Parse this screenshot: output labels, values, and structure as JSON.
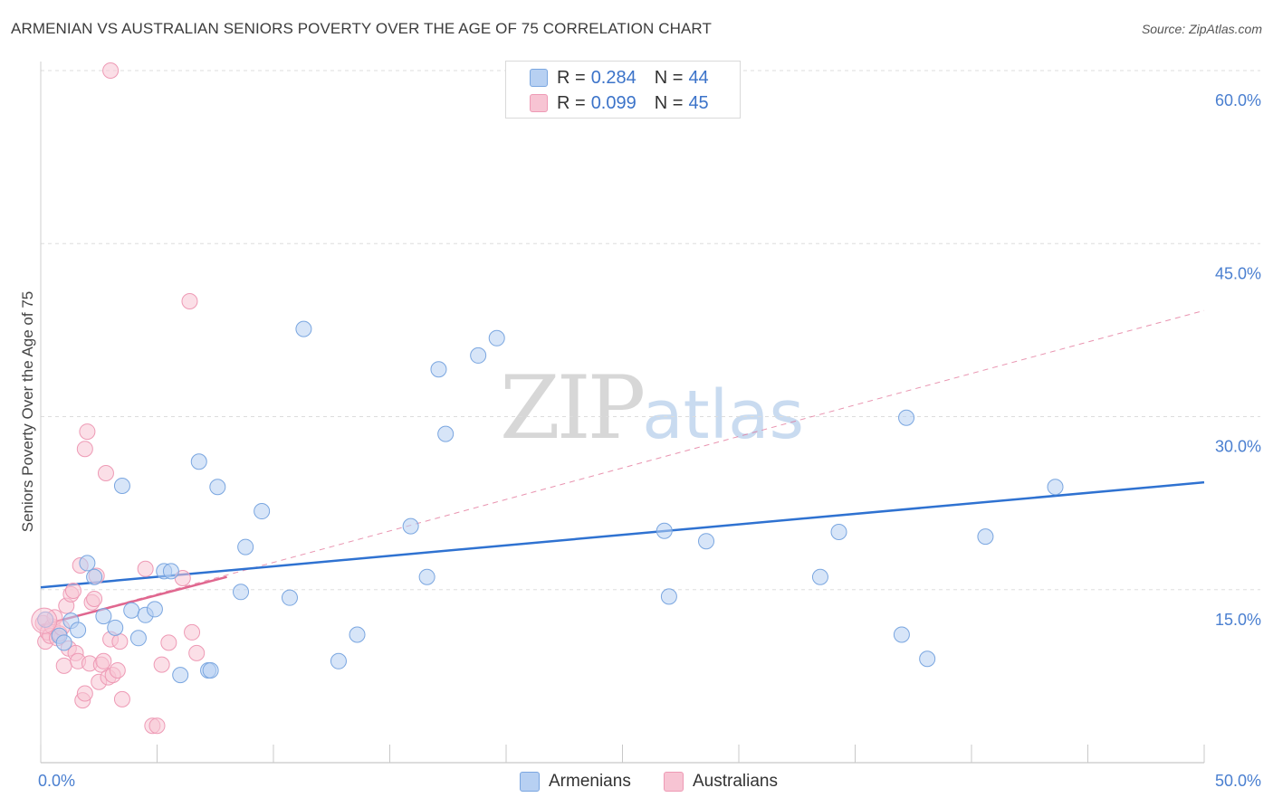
{
  "title": "ARMENIAN VS AUSTRALIAN SENIORS POVERTY OVER THE AGE OF 75 CORRELATION CHART",
  "source": "Source: ZipAtlas.com",
  "watermark": {
    "zip": "ZIP",
    "atlas": "atlas"
  },
  "legend": {
    "armenians": {
      "r_label": "R =",
      "r_value": "0.284",
      "n_label": "N =",
      "n_value": "44"
    },
    "australians": {
      "r_label": "R =",
      "r_value": "0.099",
      "n_label": "N =",
      "n_value": "45"
    }
  },
  "bottom_legend": {
    "armenians": "Armenians",
    "australians": "Australians"
  },
  "colors": {
    "armenians_fill": "#b7d0f2",
    "armenians_stroke": "#7aa6e0",
    "armenians_line": "#2f72d1",
    "australians_fill": "#f7c4d3",
    "australians_stroke": "#ee9ab5",
    "australians_line": "#e0678f",
    "tick": "#4a7fd0",
    "grid": "#dddddd"
  },
  "chart_data": {
    "type": "scatter",
    "title": "ARMENIAN VS AUSTRALIAN SENIORS POVERTY OVER THE AGE OF 75 CORRELATION CHART",
    "xlabel": "",
    "ylabel": "Seniors Poverty Over the Age of 75",
    "xlim": [
      0,
      50
    ],
    "ylim": [
      0,
      60
    ],
    "x_tick_labels": [
      "0.0%",
      "50.0%"
    ],
    "y_ticks": [
      15,
      30,
      45,
      60
    ],
    "y_tick_labels": [
      "15.0%",
      "30.0%",
      "45.0%",
      "60.0%"
    ],
    "series": [
      {
        "name": "Armenians",
        "R": 0.284,
        "N": 44,
        "trend": {
          "x": [
            0,
            50
          ],
          "y": [
            15.2,
            24.3
          ]
        },
        "points": [
          [
            0.2,
            12.4
          ],
          [
            0.8,
            11.0
          ],
          [
            1.0,
            10.4
          ],
          [
            1.3,
            12.3
          ],
          [
            1.6,
            11.5
          ],
          [
            2.0,
            17.3
          ],
          [
            2.3,
            16.1
          ],
          [
            2.7,
            12.7
          ],
          [
            3.2,
            11.7
          ],
          [
            3.5,
            24.0
          ],
          [
            3.9,
            13.2
          ],
          [
            4.2,
            10.8
          ],
          [
            4.5,
            12.8
          ],
          [
            4.9,
            13.3
          ],
          [
            5.3,
            16.6
          ],
          [
            5.6,
            16.6
          ],
          [
            6.0,
            7.6
          ],
          [
            6.8,
            26.1
          ],
          [
            7.2,
            8.0
          ],
          [
            7.6,
            23.9
          ],
          [
            8.8,
            18.7
          ],
          [
            9.5,
            21.8
          ],
          [
            8.6,
            14.8
          ],
          [
            10.7,
            14.3
          ],
          [
            11.3,
            37.6
          ],
          [
            12.8,
            8.8
          ],
          [
            13.6,
            11.1
          ],
          [
            15.9,
            20.5
          ],
          [
            16.6,
            16.1
          ],
          [
            17.1,
            34.1
          ],
          [
            17.4,
            28.5
          ],
          [
            18.8,
            35.3
          ],
          [
            19.6,
            36.8
          ],
          [
            26.8,
            20.1
          ],
          [
            27.0,
            14.4
          ],
          [
            28.6,
            19.2
          ],
          [
            33.5,
            16.1
          ],
          [
            34.3,
            20.0
          ],
          [
            37.0,
            11.1
          ],
          [
            37.2,
            29.9
          ],
          [
            38.1,
            9.0
          ],
          [
            40.6,
            19.6
          ],
          [
            43.6,
            23.9
          ],
          [
            7.3,
            8.0
          ]
        ]
      },
      {
        "name": "Australians",
        "R": 0.099,
        "N": 45,
        "trend": {
          "x": [
            0,
            8
          ],
          "y": [
            11.9,
            16.1
          ]
        },
        "trend_extended": {
          "x": [
            0,
            50
          ],
          "y": [
            11.9,
            39.2
          ]
        },
        "points": [
          [
            0.1,
            12.1
          ],
          [
            0.2,
            10.5
          ],
          [
            0.3,
            11.3
          ],
          [
            0.4,
            11.0
          ],
          [
            0.5,
            11.8
          ],
          [
            0.6,
            12.6
          ],
          [
            0.7,
            10.8
          ],
          [
            0.8,
            11.2
          ],
          [
            0.9,
            11.7
          ],
          [
            1.0,
            8.4
          ],
          [
            1.1,
            13.6
          ],
          [
            1.2,
            9.9
          ],
          [
            1.3,
            14.6
          ],
          [
            1.4,
            14.9
          ],
          [
            1.5,
            9.5
          ],
          [
            1.6,
            8.8
          ],
          [
            1.7,
            17.1
          ],
          [
            1.8,
            5.4
          ],
          [
            1.9,
            6.0
          ],
          [
            1.9,
            27.2
          ],
          [
            2.0,
            28.7
          ],
          [
            2.1,
            8.6
          ],
          [
            2.2,
            13.9
          ],
          [
            2.3,
            14.2
          ],
          [
            2.4,
            16.2
          ],
          [
            2.5,
            7.0
          ],
          [
            2.6,
            8.5
          ],
          [
            2.7,
            8.8
          ],
          [
            2.8,
            25.1
          ],
          [
            2.9,
            7.4
          ],
          [
            3.0,
            10.7
          ],
          [
            3.1,
            7.6
          ],
          [
            3.3,
            8.0
          ],
          [
            3.4,
            10.5
          ],
          [
            3.5,
            5.5
          ],
          [
            3.0,
            60.0
          ],
          [
            4.5,
            16.8
          ],
          [
            4.8,
            3.2
          ],
          [
            5.0,
            3.2
          ],
          [
            5.2,
            8.5
          ],
          [
            5.5,
            10.4
          ],
          [
            6.1,
            16.0
          ],
          [
            6.4,
            40.0
          ],
          [
            6.5,
            11.3
          ],
          [
            6.7,
            9.5
          ]
        ]
      }
    ]
  }
}
